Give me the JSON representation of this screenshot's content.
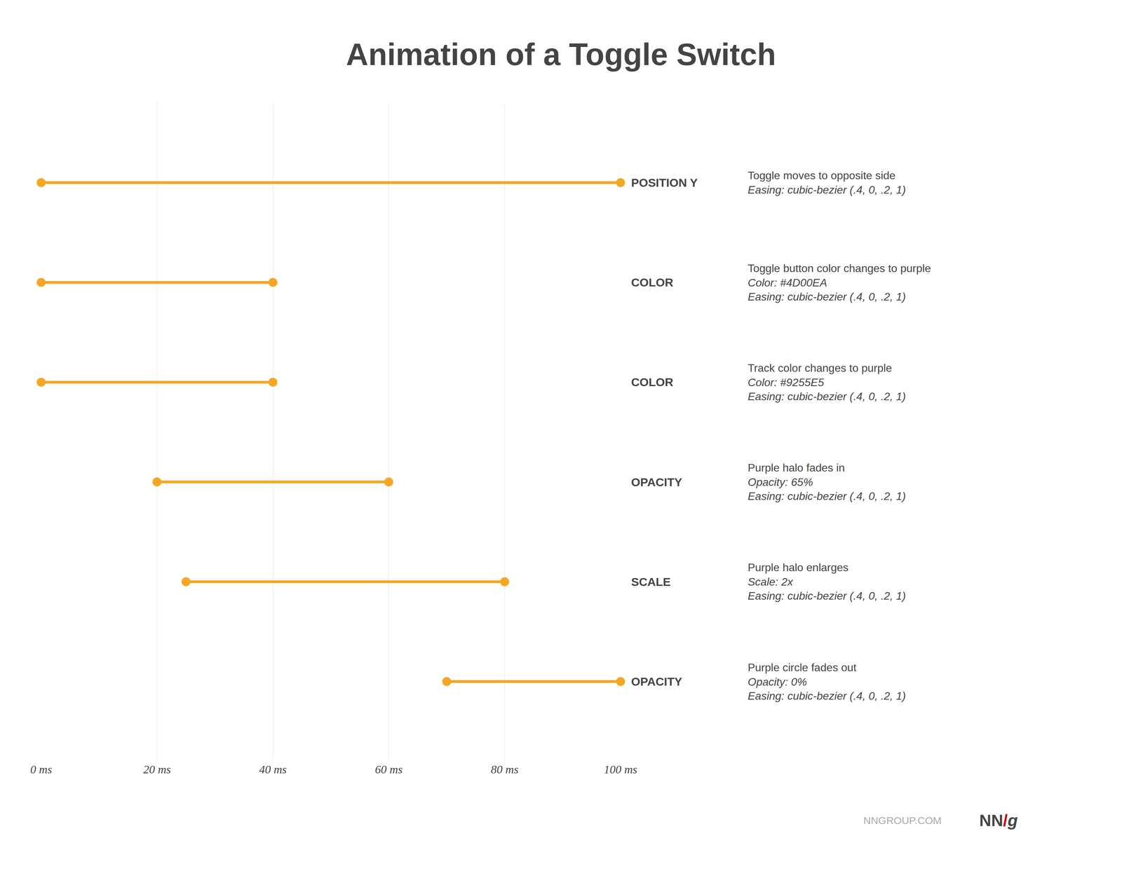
{
  "chart_data": {
    "type": "timeline",
    "title": "Animation of a Toggle Switch",
    "orientation": "horizontal",
    "categories": [
      "POSITION Y",
      "COLOR",
      "COLOR",
      "OPACITY",
      "SCALE",
      "OPACITY"
    ],
    "series": [
      {
        "color": "#F5A623",
        "start": [
          0,
          0,
          0,
          20,
          25,
          70
        ],
        "end": [
          100,
          40,
          40,
          60,
          80,
          100
        ]
      }
    ],
    "annotations": [
      [
        "Toggle moves to opposite side",
        "Easing: cubic-bezier (.4, 0, .2, 1)"
      ],
      [
        "Toggle button color changes to purple",
        "Color: #4D00EA",
        "Easing: cubic-bezier (.4, 0, .2, 1)"
      ],
      [
        "Track color changes to purple",
        "Color: #9255E5",
        "Easing: cubic-bezier (.4, 0, .2, 1)"
      ],
      [
        "Purple halo fades in",
        "Opacity: 65%",
        "Easing: cubic-bezier (.4, 0, .2, 1)"
      ],
      [
        "Purple halo enlarges",
        "Scale: 2x",
        "Easing: cubic-bezier (.4, 0, .2, 1)"
      ],
      [
        "Purple circle fades out",
        "Opacity: 0%",
        "Easing: cubic-bezier (.4, 0, .2, 1)"
      ]
    ],
    "footer": [
      {
        "text": "NNGROUP.COM"
      },
      {
        "text": "NN"
      },
      {
        "text": "/",
        "color": "#CC0000"
      },
      {
        "text": "g"
      }
    ],
    "xlim": [
      0,
      100
    ],
    "xticks": [
      {
        "value": 0,
        "label": "0 ms"
      },
      {
        "value": 20,
        "label": "20 ms"
      },
      {
        "value": 40,
        "label": "40 ms"
      },
      {
        "value": 60,
        "label": "60 ms"
      },
      {
        "value": 80,
        "label": "80 ms"
      },
      {
        "value": 100,
        "label": "100 ms"
      }
    ],
    "grid": true
  }
}
